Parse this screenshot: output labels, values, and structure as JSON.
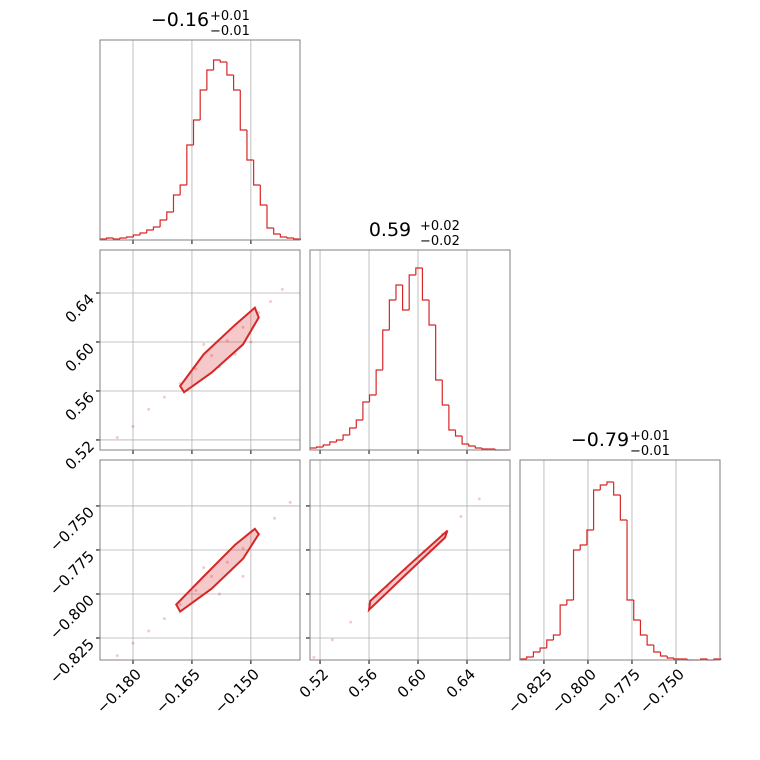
{
  "chart_data": [
    {
      "type": "histogram",
      "title": {
        "value": "−0.16",
        "plus": "+0.01",
        "minus": "−0.01"
      },
      "color": "#d62728",
      "grid": true,
      "bins": [
        -0.1884,
        -0.1867,
        -0.185,
        -0.1833,
        -0.1816,
        -0.1799,
        -0.1782,
        -0.1765,
        -0.1748,
        -0.1731,
        -0.1714,
        -0.1697,
        -0.168,
        -0.1663,
        -0.1646,
        -0.1629,
        -0.1612,
        -0.1595,
        -0.1578,
        -0.1561,
        -0.1544,
        -0.1527,
        -0.151,
        -0.1493,
        -0.1476,
        -0.1459,
        -0.1442,
        -0.1425,
        -0.1408,
        -0.1391,
        -0.1374
      ],
      "values": [
        1,
        2,
        1,
        2,
        3,
        5,
        7,
        10,
        13,
        20,
        28,
        45,
        55,
        95,
        120,
        150,
        170,
        180,
        178,
        165,
        150,
        110,
        80,
        55,
        35,
        12,
        6,
        3,
        2,
        1
      ],
      "xlim": [
        -0.1884,
        -0.1375
      ],
      "ylim": [
        0,
        200
      ],
      "xticks": [
        -0.18,
        -0.165,
        -0.15
      ]
    },
    {
      "type": "scatter",
      "color": "#d62728",
      "grid": true,
      "x": [
        -0.184,
        -0.18,
        -0.176,
        -0.172,
        -0.168,
        -0.164,
        -0.16,
        -0.156,
        -0.152,
        -0.148,
        -0.145,
        -0.142,
        -0.154,
        -0.162,
        -0.15,
        -0.158
      ],
      "y": [
        0.522,
        0.531,
        0.545,
        0.555,
        0.566,
        0.578,
        0.589,
        0.601,
        0.612,
        0.624,
        0.633,
        0.643,
        0.59,
        0.598,
        0.6,
        0.58
      ],
      "contour": {
        "x": [
          -0.167,
          -0.16,
          -0.152,
          -0.148,
          -0.149,
          -0.154,
          -0.162,
          -0.168
        ],
        "y": [
          0.559,
          0.575,
          0.598,
          0.62,
          0.628,
          0.614,
          0.59,
          0.564
        ]
      },
      "xlim": [
        -0.1884,
        -0.1375
      ],
      "ylim": [
        0.5118,
        0.6751
      ],
      "xticks": [
        -0.18,
        -0.165,
        -0.15
      ],
      "yticks": [
        0.52,
        0.56,
        {
          "value": 0.6,
          "label": "0.60"
        },
        0.64
      ]
    },
    {
      "type": "histogram",
      "title": {
        "value": "0.59",
        "plus": "+0.02",
        "minus": "−0.02"
      },
      "color": "#d62728",
      "grid": true,
      "bins": [
        0.5118,
        0.5172,
        0.5226,
        0.528,
        0.5334,
        0.5388,
        0.5442,
        0.5496,
        0.555,
        0.5604,
        0.5658,
        0.5712,
        0.5766,
        0.582,
        0.5874,
        0.5928,
        0.5982,
        0.6036,
        0.609,
        0.6144,
        0.6198,
        0.6252,
        0.6306,
        0.636,
        0.6414,
        0.6468,
        0.6522,
        0.6576,
        0.663,
        0.6684,
        0.6738
      ],
      "values": [
        2,
        3,
        5,
        8,
        10,
        15,
        22,
        30,
        48,
        55,
        80,
        120,
        150,
        165,
        140,
        175,
        182,
        150,
        125,
        70,
        45,
        20,
        14,
        6,
        4,
        2,
        1,
        1,
        0,
        0
      ],
      "xlim": [
        0.5118,
        0.6751
      ],
      "ylim": [
        0,
        200
      ],
      "xticks": [
        0.52,
        0.56,
        0.6,
        0.64
      ]
    },
    {
      "type": "scatter",
      "color": "#d62728",
      "grid": true,
      "x": [
        -0.184,
        -0.18,
        -0.176,
        -0.172,
        -0.168,
        -0.164,
        -0.16,
        -0.156,
        -0.152,
        -0.148,
        -0.144,
        -0.14,
        -0.158,
        -0.152,
        -0.162
      ],
      "y": [
        -0.835,
        -0.828,
        -0.821,
        -0.814,
        -0.806,
        -0.798,
        -0.79,
        -0.782,
        -0.774,
        -0.766,
        -0.757,
        -0.748,
        -0.8,
        -0.79,
        -0.785
      ],
      "contour": {
        "x": [
          -0.168,
          -0.16,
          -0.152,
          -0.148,
          -0.149,
          -0.154,
          -0.162,
          -0.169
        ],
        "y": [
          -0.81,
          -0.797,
          -0.78,
          -0.766,
          -0.763,
          -0.772,
          -0.79,
          -0.806
        ]
      },
      "xlim": [
        -0.1884,
        -0.1375
      ],
      "ylim": [
        -0.8375,
        -0.7239
      ],
      "xticks": [
        {
          "value": -0.18,
          "label": "−0.180"
        },
        {
          "value": -0.165,
          "label": "−0.165"
        },
        {
          "value": -0.15,
          "label": "−0.150"
        }
      ],
      "yticks": [
        {
          "value": -0.825,
          "label": "−0.825"
        },
        {
          "value": -0.8,
          "label": "−0.800"
        },
        {
          "value": -0.775,
          "label": "−0.775"
        },
        {
          "value": -0.75,
          "label": "−0.750"
        }
      ]
    },
    {
      "type": "scatter",
      "color": "#d62728",
      "grid": true,
      "x": [
        0.515,
        0.53,
        0.545,
        0.56,
        0.575,
        0.59,
        0.605,
        0.62,
        0.635,
        0.65
      ],
      "y": [
        -0.836,
        -0.826,
        -0.816,
        -0.806,
        -0.796,
        -0.786,
        -0.776,
        -0.766,
        -0.756,
        -0.746
      ],
      "contour": {
        "x": [
          0.56,
          0.59,
          0.622,
          0.624,
          0.592,
          0.561
        ],
        "y": [
          -0.809,
          -0.789,
          -0.768,
          -0.764,
          -0.784,
          -0.804
        ]
      },
      "xlim": [
        0.5118,
        0.6751
      ],
      "ylim": [
        -0.8375,
        -0.7239
      ],
      "xticks": [
        0.52,
        0.56,
        {
          "value": 0.6,
          "label": "0.60"
        },
        0.64
      ],
      "yticks": [
        -0.825,
        -0.8,
        -0.775,
        -0.75
      ]
    },
    {
      "type": "histogram",
      "title": {
        "value": "−0.79",
        "plus": "+0.01",
        "minus": "−0.01"
      },
      "color": "#d62728",
      "grid": true,
      "bins": [
        -0.8386,
        -0.8348,
        -0.831,
        -0.8272,
        -0.8234,
        -0.8196,
        -0.8158,
        -0.812,
        -0.8082,
        -0.8044,
        -0.8006,
        -0.7968,
        -0.793,
        -0.7892,
        -0.7854,
        -0.7816,
        -0.7778,
        -0.774,
        -0.7702,
        -0.7664,
        -0.7626,
        -0.7588,
        -0.755,
        -0.7512,
        -0.7474,
        -0.7436,
        -0.7398,
        -0.736,
        -0.7322,
        -0.7284,
        -0.7246
      ],
      "values": [
        1,
        3,
        8,
        12,
        20,
        25,
        55,
        60,
        110,
        115,
        130,
        170,
        175,
        178,
        165,
        140,
        60,
        40,
        25,
        15,
        8,
        4,
        2,
        1,
        1,
        0,
        0,
        1,
        0,
        1
      ],
      "xlim": [
        -0.8386,
        -0.725
      ],
      "ylim": [
        0,
        200
      ],
      "xticks": [
        {
          "value": -0.825,
          "label": "−0.825"
        },
        {
          "value": -0.8,
          "label": "−0.800"
        },
        {
          "value": -0.775,
          "label": "−0.775"
        },
        {
          "value": -0.75,
          "label": "−0.750"
        }
      ]
    }
  ]
}
